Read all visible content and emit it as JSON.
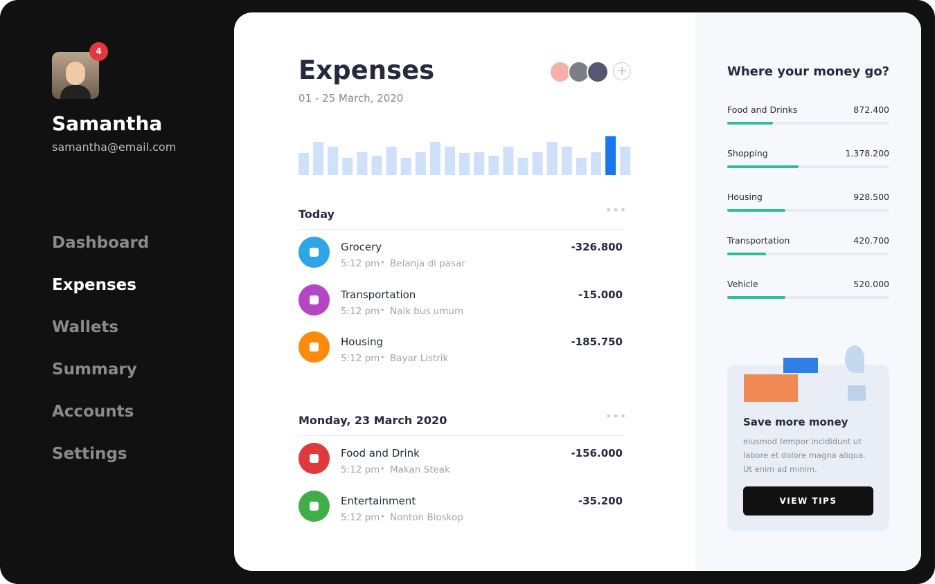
{
  "sidebar": {
    "notification_count": 4,
    "name": "Samantha",
    "email": "samantha@email.com",
    "nav": [
      "Dashboard",
      "Expenses",
      "Wallets",
      "Summary",
      "Accounts",
      "Settings"
    ],
    "active": 1
  },
  "main": {
    "title": "Expenses",
    "date_range": "01 - 25 March, 2020",
    "chart": {
      "values": [
        32,
        48,
        41,
        25,
        33,
        28,
        41,
        25,
        33,
        48,
        41,
        32,
        33,
        28,
        41,
        25,
        33,
        48,
        41,
        25,
        33,
        56,
        41
      ],
      "highlight": 21,
      "color": "#cfe0fb",
      "highlight_color": "#1677ee"
    },
    "groups": [
      {
        "title": "Today",
        "items": [
          {
            "name": "Grocery",
            "time": "5:12 pm",
            "note": "Belanja di pasar",
            "amount": "-326.800",
            "color": "#2fa5e6"
          },
          {
            "name": "Transportation",
            "time": "5:12 pm",
            "note": "Naik bus umum",
            "amount": "-15.000",
            "color": "#b446c4"
          },
          {
            "name": "Housing",
            "time": "5:12 pm",
            "note": "Bayar Listrik",
            "amount": "-185.750",
            "color": "#fa8b0c"
          }
        ]
      },
      {
        "title": "Monday, 23 March 2020",
        "items": [
          {
            "name": "Food and Drink",
            "time": "5:12 pm",
            "note": "Makan Steak",
            "amount": "-156.000",
            "color": "#e0383c"
          },
          {
            "name": "Entertainment",
            "time": "5:12 pm",
            "note": "Nonton Bioskop",
            "amount": "-35.200",
            "color": "#3fae48"
          }
        ]
      }
    ]
  },
  "side": {
    "title": "Where your money go?",
    "categories": [
      {
        "name": "Food and Drinks",
        "amount": "872.400",
        "progress": 28
      },
      {
        "name": "Shopping",
        "amount": "1.378.200",
        "progress": 44
      },
      {
        "name": "Housing",
        "amount": "928.500",
        "progress": 36
      },
      {
        "name": "Transportation",
        "amount": "420.700",
        "progress": 24
      },
      {
        "name": "Vehicle",
        "amount": "520.000",
        "progress": 36
      }
    ],
    "bar_color": "#2fbf95",
    "tip": {
      "title": "Save more money",
      "text": "eiusmod tempor incididunt ut labore et dolore magna aliqua. Ut enim ad minim.",
      "button": "VIEW TIPS"
    }
  }
}
